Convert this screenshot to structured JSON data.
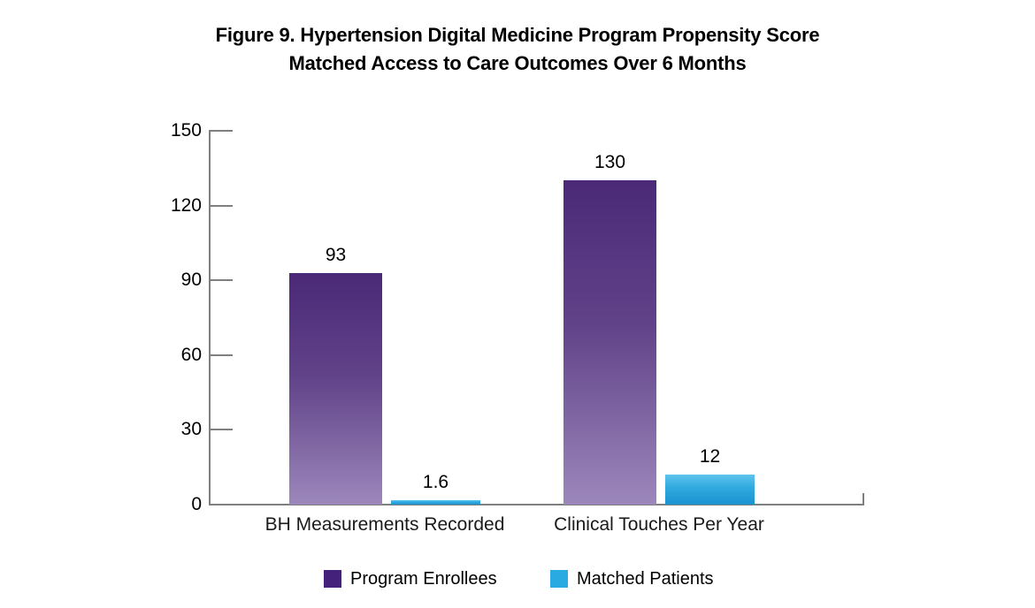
{
  "title": {
    "prefix": "Figure 9.",
    "line1_rest": " Hypertension Digital Medicine Program Propensity Score",
    "line2": "Matched Access to Care Outcomes Over 6 Months"
  },
  "chart_data": {
    "type": "bar",
    "title": "Figure 9. Hypertension Digital Medicine Program Propensity Score Matched Access to Care Outcomes Over 6 Months",
    "categories": [
      "BH Measurements Recorded",
      "Clinical Touches Per Year"
    ],
    "series": [
      {
        "name": "Program Enrollees",
        "values": [
          93,
          130
        ],
        "value_labels": [
          "93",
          "130"
        ],
        "color_top": "#4a2977",
        "color_mid": "#614389",
        "color_bottom": "#9c87bb",
        "legend_color": "#44217a"
      },
      {
        "name": "Matched Patients",
        "values": [
          1.6,
          12
        ],
        "value_labels": [
          "1.6",
          "12"
        ],
        "color_top": "#5dc4ec",
        "color_mid": "#2fa9df",
        "color_bottom": "#1b92d0",
        "legend_color": "#29abe2"
      }
    ],
    "xlabel": "",
    "ylabel": "",
    "ylim": [
      0,
      150
    ],
    "ytick_step": 30,
    "ytick_labels": [
      "0",
      "30",
      "60",
      "90",
      "120",
      "150"
    ],
    "grid": false,
    "legend_position": "bottom",
    "axis_color": "#7f7f7f",
    "background": "#ffffff"
  },
  "legend": {
    "items": [
      {
        "label": "Program Enrollees",
        "color": "#44217a"
      },
      {
        "label": "Matched Patients",
        "color": "#29abe2"
      }
    ]
  }
}
